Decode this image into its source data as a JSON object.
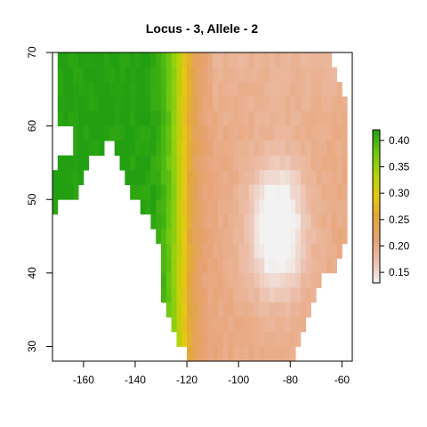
{
  "chart_data": {
    "type": "heatmap",
    "title": "Locus - 3, Allele - 2",
    "xlabel": "",
    "ylabel": "",
    "xlim": [
      -172,
      -56
    ],
    "ylim": [
      28,
      70
    ],
    "x_ticks": [
      -160,
      -140,
      -120,
      -100,
      -80,
      -60
    ],
    "y_ticks": [
      30,
      40,
      50,
      60,
      70
    ],
    "x_tick_labels": [
      "-160",
      "-140",
      "-120",
      "-100",
      "-80",
      "-60"
    ],
    "y_tick_labels": [
      "30",
      "40",
      "50",
      "60",
      "70"
    ],
    "legend": {
      "position": "right",
      "range": [
        0.13,
        0.42
      ],
      "ticks": [
        0.15,
        0.2,
        0.25,
        0.3,
        0.35,
        0.4
      ],
      "tick_labels": [
        "0.15",
        "0.20",
        "0.25",
        "0.30",
        "0.35",
        "0.40"
      ]
    },
    "colormap": [
      "#f2f2f2",
      "#ecbfac",
      "#e7a274",
      "#e2a540",
      "#e6c810",
      "#b0d30c",
      "#6dc812",
      "#22a012"
    ],
    "cell_size_degrees": 2,
    "region_rows": [
      {
        "lat": 69,
        "lon_min": -170,
        "lon_max": -64
      },
      {
        "lat": 67,
        "lon_min": -170,
        "lon_max": -62
      },
      {
        "lat": 65,
        "lon_min": -170,
        "lon_max": -60
      },
      {
        "lat": 63,
        "lon_min": -170,
        "lon_max": -58
      },
      {
        "lat": 61,
        "lon_min": -170,
        "lon_max": -58
      },
      {
        "lat": 59,
        "lon_min": -170,
        "lon_max": -58,
        "gaps": [
          [
            -170,
            -164
          ]
        ]
      },
      {
        "lat": 57,
        "lon_min": -164,
        "lon_max": -58,
        "gaps": [
          [
            -152,
            -148
          ]
        ]
      },
      {
        "lat": 55,
        "lon_min": -170,
        "lon_max": -58,
        "gaps": [
          [
            -158,
            -146
          ]
        ]
      },
      {
        "lat": 53,
        "lon_min": -172,
        "lon_max": -58,
        "gaps": [
          [
            -160,
            -144
          ]
        ]
      },
      {
        "lat": 51,
        "lon_min": -172,
        "lon_max": -58,
        "gaps": [
          [
            -162,
            -142
          ]
        ]
      },
      {
        "lat": 49,
        "lon_min": -172,
        "lon_max": -58,
        "gaps": [
          [
            -170,
            -138
          ]
        ]
      },
      {
        "lat": 47,
        "lon_min": -134,
        "lon_max": -58
      },
      {
        "lat": 45,
        "lon_min": -132,
        "lon_max": -58
      },
      {
        "lat": 43,
        "lon_min": -130,
        "lon_max": -60
      },
      {
        "lat": 41,
        "lon_min": -130,
        "lon_max": -62
      },
      {
        "lat": 39,
        "lon_min": -130,
        "lon_max": -68
      },
      {
        "lat": 37,
        "lon_min": -130,
        "lon_max": -70
      },
      {
        "lat": 35,
        "lon_min": -128,
        "lon_max": -72
      },
      {
        "lat": 33,
        "lon_min": -126,
        "lon_max": -74
      },
      {
        "lat": 31,
        "lon_min": -124,
        "lon_max": -76
      },
      {
        "lat": 29,
        "lon_min": -120,
        "lon_max": -78
      }
    ],
    "value_model": {
      "west_value": 0.42,
      "east_value": 0.2,
      "transition_center_lon": -122,
      "low_center": [
        -85,
        46
      ],
      "low_min": 0.13
    }
  }
}
